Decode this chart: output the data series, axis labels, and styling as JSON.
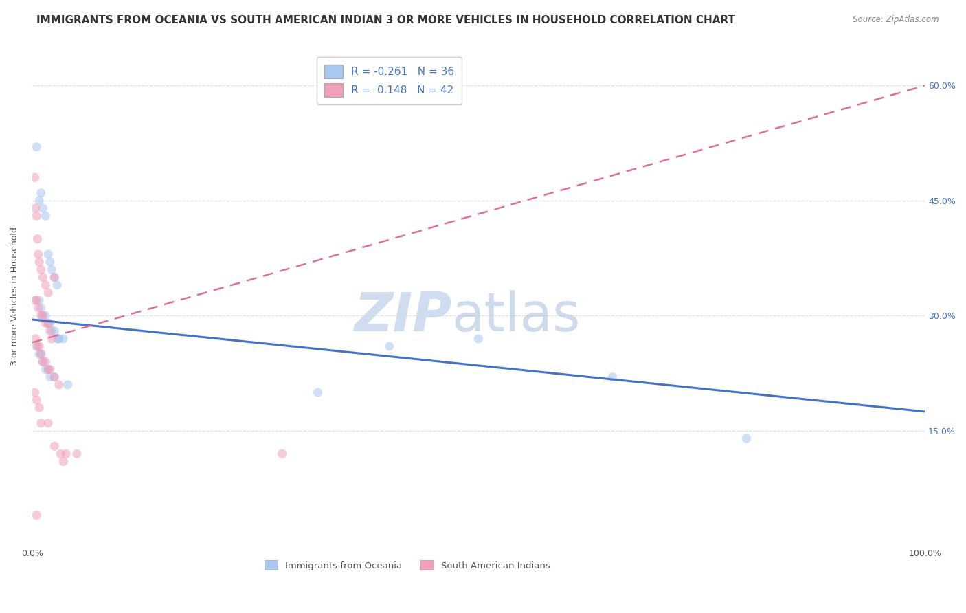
{
  "title": "IMMIGRANTS FROM OCEANIA VS SOUTH AMERICAN INDIAN 3 OR MORE VEHICLES IN HOUSEHOLD CORRELATION CHART",
  "source": "Source: ZipAtlas.com",
  "ylabel": "3 or more Vehicles in Household",
  "right_yticks": [
    "60.0%",
    "45.0%",
    "30.0%",
    "15.0%"
  ],
  "right_ytick_vals": [
    0.6,
    0.45,
    0.3,
    0.15
  ],
  "legend_label1": "Immigrants from Oceania",
  "legend_label2": "South American Indians",
  "R1": -0.261,
  "N1": 36,
  "R2": 0.148,
  "N2": 42,
  "color_blue": "#A8C8F0",
  "color_pink": "#F0A0B8",
  "line_blue": "#4472C4",
  "line_pink": "#E07090",
  "blue_scatter_x": [
    0.005,
    0.01,
    0.008,
    0.012,
    0.015,
    0.018,
    0.02,
    0.022,
    0.025,
    0.028,
    0.008,
    0.01,
    0.012,
    0.015,
    0.018,
    0.02,
    0.022,
    0.025,
    0.028,
    0.03,
    0.005,
    0.008,
    0.01,
    0.012,
    0.015,
    0.018,
    0.02,
    0.025,
    0.03,
    0.035,
    0.04,
    0.5,
    0.4,
    0.8,
    0.65,
    0.32
  ],
  "blue_scatter_y": [
    0.52,
    0.46,
    0.45,
    0.44,
    0.43,
    0.38,
    0.37,
    0.36,
    0.35,
    0.34,
    0.32,
    0.31,
    0.3,
    0.3,
    0.29,
    0.29,
    0.28,
    0.28,
    0.27,
    0.27,
    0.26,
    0.25,
    0.25,
    0.24,
    0.23,
    0.23,
    0.22,
    0.22,
    0.27,
    0.27,
    0.21,
    0.27,
    0.26,
    0.14,
    0.22,
    0.2
  ],
  "pink_scatter_x": [
    0.003,
    0.004,
    0.005,
    0.006,
    0.007,
    0.008,
    0.01,
    0.012,
    0.015,
    0.018,
    0.003,
    0.005,
    0.007,
    0.01,
    0.012,
    0.015,
    0.018,
    0.02,
    0.022,
    0.025,
    0.004,
    0.006,
    0.008,
    0.01,
    0.012,
    0.015,
    0.018,
    0.02,
    0.025,
    0.03,
    0.003,
    0.005,
    0.008,
    0.01,
    0.018,
    0.025,
    0.032,
    0.038,
    0.05,
    0.28,
    0.005,
    0.035
  ],
  "pink_scatter_y": [
    0.48,
    0.44,
    0.43,
    0.4,
    0.38,
    0.37,
    0.36,
    0.35,
    0.34,
    0.33,
    0.32,
    0.32,
    0.31,
    0.3,
    0.3,
    0.29,
    0.29,
    0.28,
    0.27,
    0.35,
    0.27,
    0.26,
    0.26,
    0.25,
    0.24,
    0.24,
    0.23,
    0.23,
    0.22,
    0.21,
    0.2,
    0.19,
    0.18,
    0.16,
    0.16,
    0.13,
    0.12,
    0.12,
    0.12,
    0.12,
    0.04,
    0.11
  ],
  "xlim": [
    0.0,
    1.0
  ],
  "ylim": [
    0.0,
    0.65
  ],
  "background_color": "#ffffff",
  "grid_color": "#dddddd",
  "title_fontsize": 11,
  "scatter_size": 90,
  "scatter_alpha": 0.55,
  "blue_line_x0": 0.0,
  "blue_line_y0": 0.295,
  "blue_line_x1": 1.0,
  "blue_line_y1": 0.175,
  "pink_line_x0": 0.0,
  "pink_line_y0": 0.265,
  "pink_line_x1": 1.0,
  "pink_line_y1": 0.6
}
